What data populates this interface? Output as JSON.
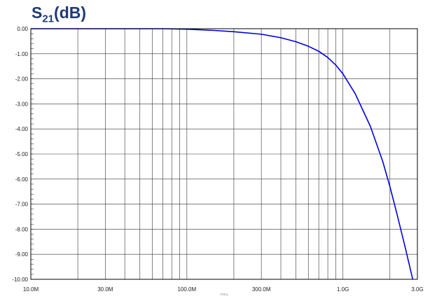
{
  "chart_data": {
    "type": "line",
    "title": {
      "main": "S",
      "sub": "21",
      "suffix": "(dB)"
    },
    "xlabel": "FREQ",
    "ylabel": "",
    "x_scale": "log",
    "xlim": [
      10000000,
      3000000000
    ],
    "ylim": [
      -10,
      0
    ],
    "grid": true,
    "x_tick_values": [
      10000000,
      30000000,
      100000000,
      300000000,
      1000000000,
      3000000000
    ],
    "x_tick_labels": [
      "10.0M",
      "30.0M",
      "100.0M",
      "300.0M",
      "1.0G",
      "3.0G"
    ],
    "y_tick_values": [
      0,
      -1,
      -2,
      -3,
      -4,
      -5,
      -6,
      -7,
      -8,
      -9,
      -10
    ],
    "y_tick_labels": [
      "0.00",
      "-1.00",
      "-2.00",
      "-3.00",
      "-4.00",
      "-5.00",
      "-6.00",
      "-7.00",
      "-8.00",
      "-9.00",
      "-10.00"
    ],
    "series": [
      {
        "color": "#0000dd",
        "x": [
          10000000,
          20000000,
          30000000,
          50000000,
          70000000,
          100000000,
          150000000,
          200000000,
          300000000,
          400000000,
          500000000,
          600000000,
          700000000,
          800000000,
          900000000,
          1000000000,
          1200000000,
          1500000000,
          1800000000,
          2000000000,
          2200000000,
          2500000000,
          2800000000
        ],
        "y": [
          0,
          0,
          0,
          0,
          0,
          -0.02,
          -0.07,
          -0.12,
          -0.22,
          -0.36,
          -0.52,
          -0.7,
          -0.9,
          -1.15,
          -1.45,
          -1.8,
          -2.6,
          -3.9,
          -5.3,
          -6.3,
          -7.3,
          -8.7,
          -10
        ]
      }
    ]
  }
}
